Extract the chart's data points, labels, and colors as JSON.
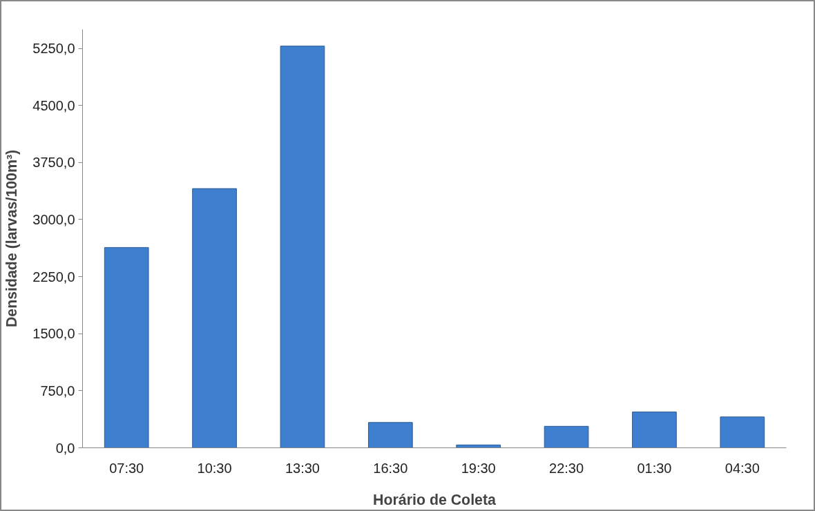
{
  "chart_data": {
    "type": "bar",
    "xlabel": "Horário de Coleta",
    "ylabel": "Densidade (larvas/100m³)",
    "categories": [
      "07:30",
      "10:30",
      "13:30",
      "16:30",
      "19:30",
      "22:30",
      "01:30",
      "04:30"
    ],
    "values": [
      2633,
      3407,
      5280,
      333,
      38,
      283,
      471,
      406
    ],
    "color": "#3f7fcf",
    "ylim": [
      0,
      5500
    ],
    "yticks": [
      {
        "value": 0,
        "label": "0,0"
      },
      {
        "value": 750,
        "label": "750,0"
      },
      {
        "value": 1500,
        "label": "1500,0"
      },
      {
        "value": 2250,
        "label": "2250,0"
      },
      {
        "value": 3000,
        "label": "3000,0"
      },
      {
        "value": 3750,
        "label": "3750,0"
      },
      {
        "value": 4500,
        "label": "4500,0"
      },
      {
        "value": 5250,
        "label": "5250,0"
      }
    ],
    "grid": false
  }
}
